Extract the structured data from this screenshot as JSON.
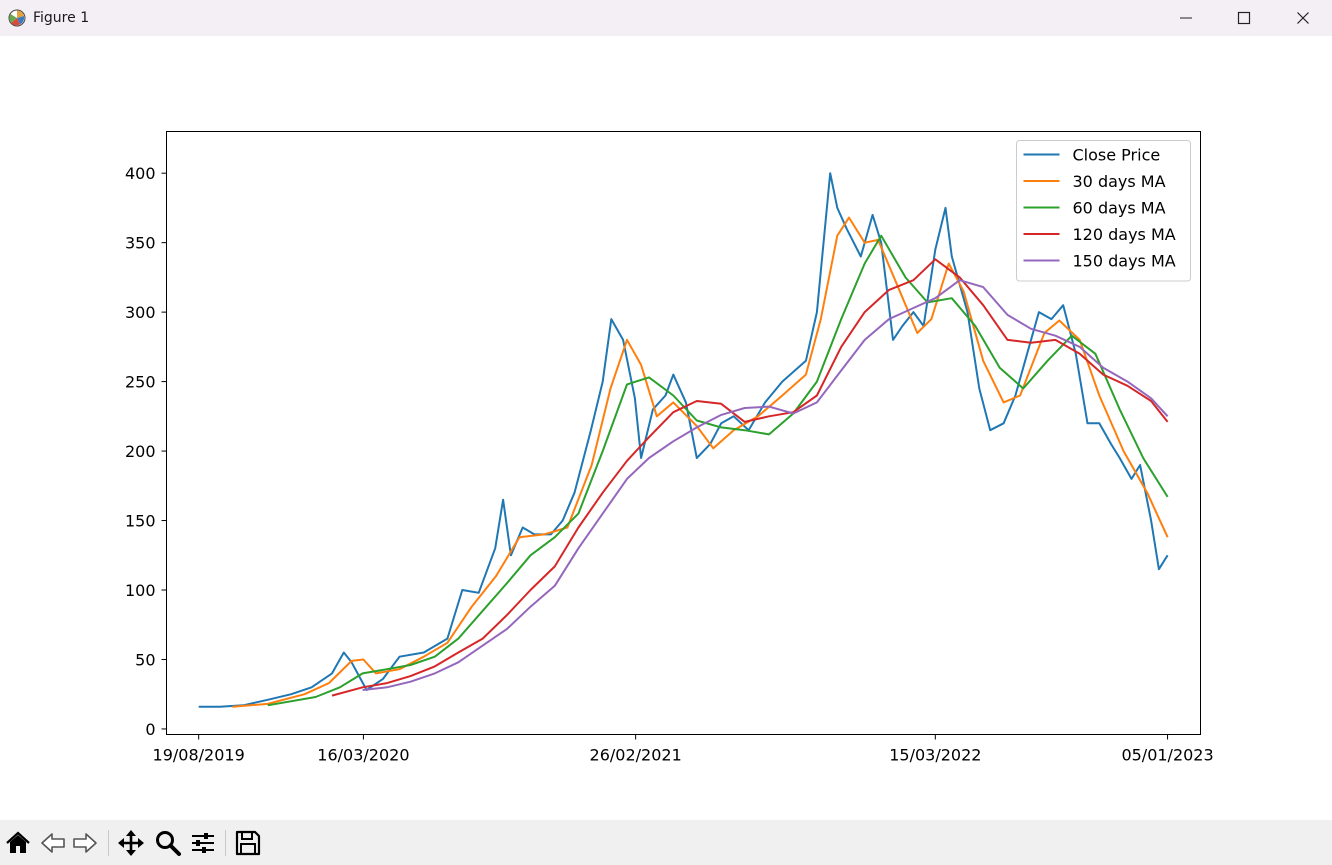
{
  "window": {
    "title": "Figure 1",
    "icon": "matplotlib-icon",
    "controls": [
      "minimize-icon",
      "maximize-icon",
      "close-icon"
    ]
  },
  "toolbar": {
    "icons": [
      "home-icon",
      "back-arrow-icon",
      "forward-arrow-icon",
      "pan-icon",
      "zoom-icon",
      "configure-subplots-icon",
      "save-icon"
    ]
  },
  "chart_data": {
    "type": "line",
    "title": "",
    "xlabel": "",
    "ylabel": "",
    "x_ticks": [
      "19/08/2019",
      "16/03/2020",
      "26/02/2021",
      "15/03/2022",
      "05/01/2023"
    ],
    "yticks": [
      0,
      50,
      100,
      150,
      200,
      250,
      300,
      350,
      400
    ],
    "ylim": [
      -4,
      430
    ],
    "xlim": [
      "2019-07-09",
      "2023-02-16"
    ],
    "grid": false,
    "legend_position": "upper right",
    "series": [
      {
        "name": "Close Price",
        "color": "#1f77b4",
        "points": [
          [
            "2019-08-19",
            16
          ],
          [
            "2019-09-15",
            16
          ],
          [
            "2019-10-15",
            17
          ],
          [
            "2019-11-15",
            21
          ],
          [
            "2019-12-15",
            25
          ],
          [
            "2020-01-10",
            30
          ],
          [
            "2020-02-05",
            40
          ],
          [
            "2020-02-20",
            55
          ],
          [
            "2020-03-01",
            48
          ],
          [
            "2020-03-20",
            28
          ],
          [
            "2020-04-10",
            36
          ],
          [
            "2020-05-01",
            52
          ],
          [
            "2020-06-01",
            55
          ],
          [
            "2020-07-01",
            65
          ],
          [
            "2020-07-20",
            100
          ],
          [
            "2020-08-10",
            98
          ],
          [
            "2020-08-31",
            130
          ],
          [
            "2020-09-10",
            165
          ],
          [
            "2020-09-20",
            125
          ],
          [
            "2020-10-05",
            145
          ],
          [
            "2020-10-20",
            140
          ],
          [
            "2020-11-10",
            140
          ],
          [
            "2020-11-25",
            150
          ],
          [
            "2020-12-10",
            170
          ],
          [
            "2020-12-31",
            215
          ],
          [
            "2021-01-15",
            250
          ],
          [
            "2021-01-26",
            295
          ],
          [
            "2021-02-10",
            280
          ],
          [
            "2021-02-25",
            238
          ],
          [
            "2021-03-05",
            195
          ],
          [
            "2021-03-20",
            230
          ],
          [
            "2021-04-05",
            240
          ],
          [
            "2021-04-15",
            255
          ],
          [
            "2021-05-01",
            235
          ],
          [
            "2021-05-15",
            195
          ],
          [
            "2021-06-01",
            205
          ],
          [
            "2021-06-15",
            220
          ],
          [
            "2021-07-01",
            225
          ],
          [
            "2021-07-20",
            215
          ],
          [
            "2021-08-10",
            235
          ],
          [
            "2021-09-01",
            250
          ],
          [
            "2021-10-01",
            265
          ],
          [
            "2021-10-15",
            300
          ],
          [
            "2021-11-01",
            400
          ],
          [
            "2021-11-10",
            375
          ],
          [
            "2021-11-22",
            360
          ],
          [
            "2021-12-10",
            340
          ],
          [
            "2021-12-25",
            370
          ],
          [
            "2022-01-05",
            350
          ],
          [
            "2022-01-20",
            280
          ],
          [
            "2022-02-01",
            290
          ],
          [
            "2022-02-15",
            300
          ],
          [
            "2022-02-28",
            290
          ],
          [
            "2022-03-15",
            345
          ],
          [
            "2022-03-28",
            375
          ],
          [
            "2022-04-05",
            340
          ],
          [
            "2022-04-25",
            300
          ],
          [
            "2022-05-10",
            245
          ],
          [
            "2022-05-24",
            215
          ],
          [
            "2022-06-10",
            220
          ],
          [
            "2022-06-25",
            240
          ],
          [
            "2022-07-10",
            270
          ],
          [
            "2022-07-25",
            300
          ],
          [
            "2022-08-10",
            295
          ],
          [
            "2022-08-25",
            305
          ],
          [
            "2022-09-10",
            270
          ],
          [
            "2022-09-25",
            220
          ],
          [
            "2022-10-10",
            220
          ],
          [
            "2022-10-25",
            205
          ],
          [
            "2022-11-05",
            195
          ],
          [
            "2022-11-20",
            180
          ],
          [
            "2022-12-01",
            190
          ],
          [
            "2022-12-15",
            150
          ],
          [
            "2022-12-25",
            115
          ],
          [
            "2023-01-05",
            125
          ]
        ]
      },
      {
        "name": "30 days MA",
        "color": "#ff7f0e",
        "points": [
          [
            "2019-10-01",
            16
          ],
          [
            "2019-11-15",
            18
          ],
          [
            "2020-01-01",
            25
          ],
          [
            "2020-02-01",
            33
          ],
          [
            "2020-03-01",
            49
          ],
          [
            "2020-03-16",
            50
          ],
          [
            "2020-04-01",
            40
          ],
          [
            "2020-05-01",
            43
          ],
          [
            "2020-06-01",
            52
          ],
          [
            "2020-07-01",
            62
          ],
          [
            "2020-08-01",
            88
          ],
          [
            "2020-09-01",
            110
          ],
          [
            "2020-10-01",
            138
          ],
          [
            "2020-11-01",
            140
          ],
          [
            "2020-12-01",
            145
          ],
          [
            "2021-01-01",
            190
          ],
          [
            "2021-01-25",
            245
          ],
          [
            "2021-02-15",
            280
          ],
          [
            "2021-03-05",
            262
          ],
          [
            "2021-03-25",
            225
          ],
          [
            "2021-04-15",
            235
          ],
          [
            "2021-05-15",
            218
          ],
          [
            "2021-06-05",
            202
          ],
          [
            "2021-07-01",
            215
          ],
          [
            "2021-08-01",
            225
          ],
          [
            "2021-09-01",
            240
          ],
          [
            "2021-10-01",
            255
          ],
          [
            "2021-10-20",
            295
          ],
          [
            "2021-11-10",
            355
          ],
          [
            "2021-11-25",
            368
          ],
          [
            "2021-12-15",
            350
          ],
          [
            "2022-01-01",
            352
          ],
          [
            "2022-01-25",
            320
          ],
          [
            "2022-02-20",
            285
          ],
          [
            "2022-03-10",
            295
          ],
          [
            "2022-04-01",
            335
          ],
          [
            "2022-04-20",
            315
          ],
          [
            "2022-05-15",
            265
          ],
          [
            "2022-06-10",
            235
          ],
          [
            "2022-07-01",
            240
          ],
          [
            "2022-08-01",
            285
          ],
          [
            "2022-08-20",
            294
          ],
          [
            "2022-09-15",
            280
          ],
          [
            "2022-10-10",
            240
          ],
          [
            "2022-11-10",
            200
          ],
          [
            "2022-12-10",
            170
          ],
          [
            "2023-01-05",
            138
          ]
        ]
      },
      {
        "name": "60 days MA",
        "color": "#2ca02c",
        "points": [
          [
            "2019-11-15",
            17
          ],
          [
            "2020-01-15",
            23
          ],
          [
            "2020-02-15",
            30
          ],
          [
            "2020-03-15",
            40
          ],
          [
            "2020-04-15",
            43
          ],
          [
            "2020-05-15",
            46
          ],
          [
            "2020-06-15",
            52
          ],
          [
            "2020-07-15",
            65
          ],
          [
            "2020-08-15",
            85
          ],
          [
            "2020-09-15",
            105
          ],
          [
            "2020-10-15",
            125
          ],
          [
            "2020-11-15",
            138
          ],
          [
            "2020-12-15",
            155
          ],
          [
            "2021-01-15",
            200
          ],
          [
            "2021-02-15",
            248
          ],
          [
            "2021-03-15",
            253
          ],
          [
            "2021-04-15",
            240
          ],
          [
            "2021-05-15",
            222
          ],
          [
            "2021-06-15",
            217
          ],
          [
            "2021-07-15",
            215
          ],
          [
            "2021-08-15",
            212
          ],
          [
            "2021-09-15",
            227
          ],
          [
            "2021-10-15",
            250
          ],
          [
            "2021-11-15",
            295
          ],
          [
            "2021-12-15",
            335
          ],
          [
            "2022-01-05",
            355
          ],
          [
            "2022-02-05",
            325
          ],
          [
            "2022-03-05",
            307
          ],
          [
            "2022-04-05",
            310
          ],
          [
            "2022-05-05",
            290
          ],
          [
            "2022-06-05",
            260
          ],
          [
            "2022-07-05",
            245
          ],
          [
            "2022-08-05",
            265
          ],
          [
            "2022-09-05",
            283
          ],
          [
            "2022-10-05",
            270
          ],
          [
            "2022-11-05",
            230
          ],
          [
            "2022-12-05",
            195
          ],
          [
            "2023-01-05",
            167
          ]
        ]
      },
      {
        "name": "120 days MA",
        "color": "#d62728",
        "points": [
          [
            "2020-02-05",
            24
          ],
          [
            "2020-03-15",
            30
          ],
          [
            "2020-04-15",
            33
          ],
          [
            "2020-05-15",
            38
          ],
          [
            "2020-06-15",
            45
          ],
          [
            "2020-07-15",
            55
          ],
          [
            "2020-08-15",
            65
          ],
          [
            "2020-09-15",
            82
          ],
          [
            "2020-10-15",
            100
          ],
          [
            "2020-11-15",
            117
          ],
          [
            "2020-12-15",
            145
          ],
          [
            "2021-01-15",
            170
          ],
          [
            "2021-02-15",
            193
          ],
          [
            "2021-03-15",
            210
          ],
          [
            "2021-04-15",
            228
          ],
          [
            "2021-05-15",
            236
          ],
          [
            "2021-06-15",
            234
          ],
          [
            "2021-07-15",
            221
          ],
          [
            "2021-08-15",
            225
          ],
          [
            "2021-09-15",
            228
          ],
          [
            "2021-10-15",
            240
          ],
          [
            "2021-11-15",
            275
          ],
          [
            "2021-12-15",
            300
          ],
          [
            "2022-01-15",
            316
          ],
          [
            "2022-02-15",
            323
          ],
          [
            "2022-03-15",
            338
          ],
          [
            "2022-04-15",
            325
          ],
          [
            "2022-05-15",
            305
          ],
          [
            "2022-06-15",
            280
          ],
          [
            "2022-07-15",
            278
          ],
          [
            "2022-08-15",
            280
          ],
          [
            "2022-09-15",
            270
          ],
          [
            "2022-10-15",
            255
          ],
          [
            "2022-11-15",
            247
          ],
          [
            "2022-12-15",
            236
          ],
          [
            "2023-01-05",
            221
          ]
        ]
      },
      {
        "name": "150 days MA",
        "color": "#9467bd",
        "points": [
          [
            "2020-03-15",
            28
          ],
          [
            "2020-04-15",
            30
          ],
          [
            "2020-05-15",
            34
          ],
          [
            "2020-06-15",
            40
          ],
          [
            "2020-07-15",
            48
          ],
          [
            "2020-08-15",
            60
          ],
          [
            "2020-09-15",
            72
          ],
          [
            "2020-10-15",
            88
          ],
          [
            "2020-11-15",
            103
          ],
          [
            "2020-12-15",
            130
          ],
          [
            "2021-01-15",
            155
          ],
          [
            "2021-02-15",
            180
          ],
          [
            "2021-03-15",
            195
          ],
          [
            "2021-04-15",
            207
          ],
          [
            "2021-05-15",
            217
          ],
          [
            "2021-06-15",
            226
          ],
          [
            "2021-07-15",
            231
          ],
          [
            "2021-08-15",
            232
          ],
          [
            "2021-09-15",
            227
          ],
          [
            "2021-10-15",
            235
          ],
          [
            "2021-11-15",
            258
          ],
          [
            "2021-12-15",
            280
          ],
          [
            "2022-01-15",
            295
          ],
          [
            "2022-02-15",
            303
          ],
          [
            "2022-03-15",
            310
          ],
          [
            "2022-04-15",
            323
          ],
          [
            "2022-05-15",
            318
          ],
          [
            "2022-06-15",
            298
          ],
          [
            "2022-07-15",
            288
          ],
          [
            "2022-08-15",
            283
          ],
          [
            "2022-09-15",
            275
          ],
          [
            "2022-10-15",
            260
          ],
          [
            "2022-11-15",
            250
          ],
          [
            "2022-12-15",
            238
          ],
          [
            "2023-01-05",
            225
          ]
        ]
      }
    ]
  }
}
